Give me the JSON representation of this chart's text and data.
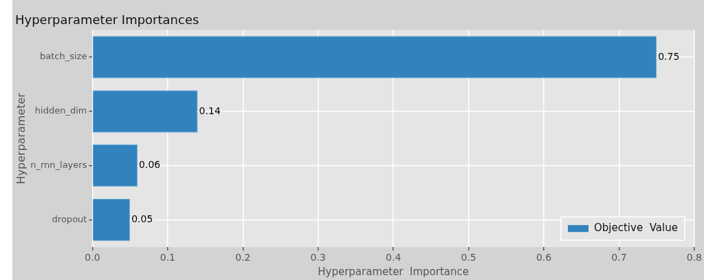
{
  "chart_data": {
    "type": "bar",
    "orientation": "horizontal",
    "title": "Hyperparameter Importances",
    "categories": [
      "batch_size",
      "hidden_dim",
      "n_rnn_layers",
      "dropout"
    ],
    "series": [
      {
        "name": "Objective  Value",
        "color": "#3182bd",
        "values": [
          0.75,
          0.14,
          0.06,
          0.05
        ]
      }
    ],
    "xlabel": "Hyperparameter  Importance",
    "ylabel": "Hyperparameter",
    "xlim": [
      0,
      0.8
    ],
    "xticks": [
      {
        "value": 0,
        "label": "0.0"
      },
      0.1,
      0.2,
      0.3,
      0.4,
      0.5,
      0.6,
      0.7,
      0.8
    ],
    "grid": true,
    "legend": "bottom right",
    "data_labels": true
  }
}
